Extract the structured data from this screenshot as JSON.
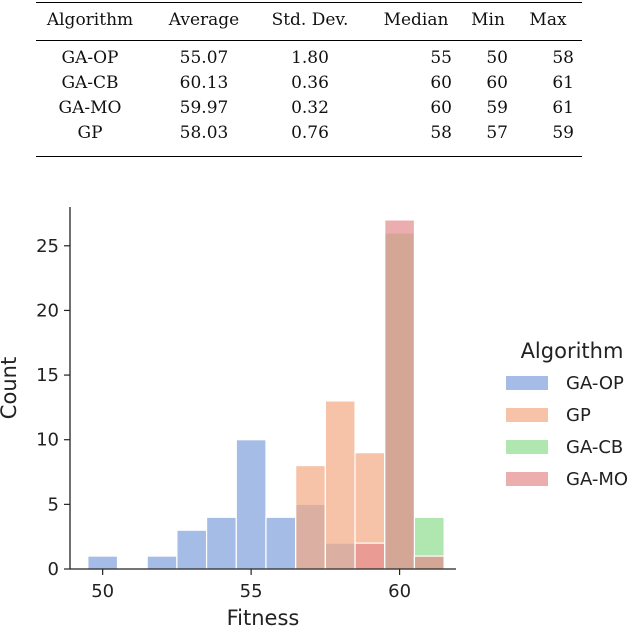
{
  "table": {
    "columns": [
      "Algorithm",
      "Average",
      "Std. Dev.",
      "Median",
      "Min",
      "Max"
    ],
    "rows": [
      [
        "GA-OP",
        "55.07",
        "1.80",
        "55",
        "50",
        "58"
      ],
      [
        "GA-CB",
        "60.13",
        "0.36",
        "60",
        "60",
        "61"
      ],
      [
        "GA-MO",
        "59.97",
        "0.32",
        "60",
        "59",
        "61"
      ],
      [
        "GP",
        "58.03",
        "0.76",
        "58",
        "57",
        "59"
      ]
    ]
  },
  "chart_data": {
    "type": "bar",
    "subtype": "overlaid-histogram",
    "xlabel": "Fitness",
    "ylabel": "Count",
    "xlim": [
      48.9,
      61.9
    ],
    "ylim": [
      0,
      28
    ],
    "xticks": [
      50,
      55,
      60
    ],
    "yticks": [
      0,
      5,
      10,
      15,
      20,
      25
    ],
    "grid": false,
    "legend": {
      "title": "Algorithm",
      "placement": "right-outside"
    },
    "bin_edges": [
      49.5,
      50.5,
      51.5,
      52.5,
      53.5,
      54.5,
      55.5,
      56.5,
      57.5,
      58.5,
      59.5,
      60.5,
      61.5
    ],
    "series": [
      {
        "name": "GA-OP",
        "color": "#7fa0dc",
        "counts": [
          1,
          0,
          1,
          3,
          4,
          10,
          4,
          5,
          2,
          0,
          0,
          0
        ]
      },
      {
        "name": "GP",
        "color": "#f2a983",
        "counts": [
          0,
          0,
          0,
          0,
          0,
          0,
          0,
          8,
          13,
          9,
          0,
          0
        ]
      },
      {
        "name": "GA-CB",
        "color": "#8fdc8f",
        "counts": [
          0,
          0,
          0,
          0,
          0,
          0,
          0,
          0,
          0,
          0,
          26,
          4
        ]
      },
      {
        "name": "GA-MO",
        "color": "#e48a8c",
        "counts": [
          0,
          0,
          0,
          0,
          0,
          0,
          0,
          0,
          0,
          2,
          27,
          1
        ]
      }
    ]
  }
}
